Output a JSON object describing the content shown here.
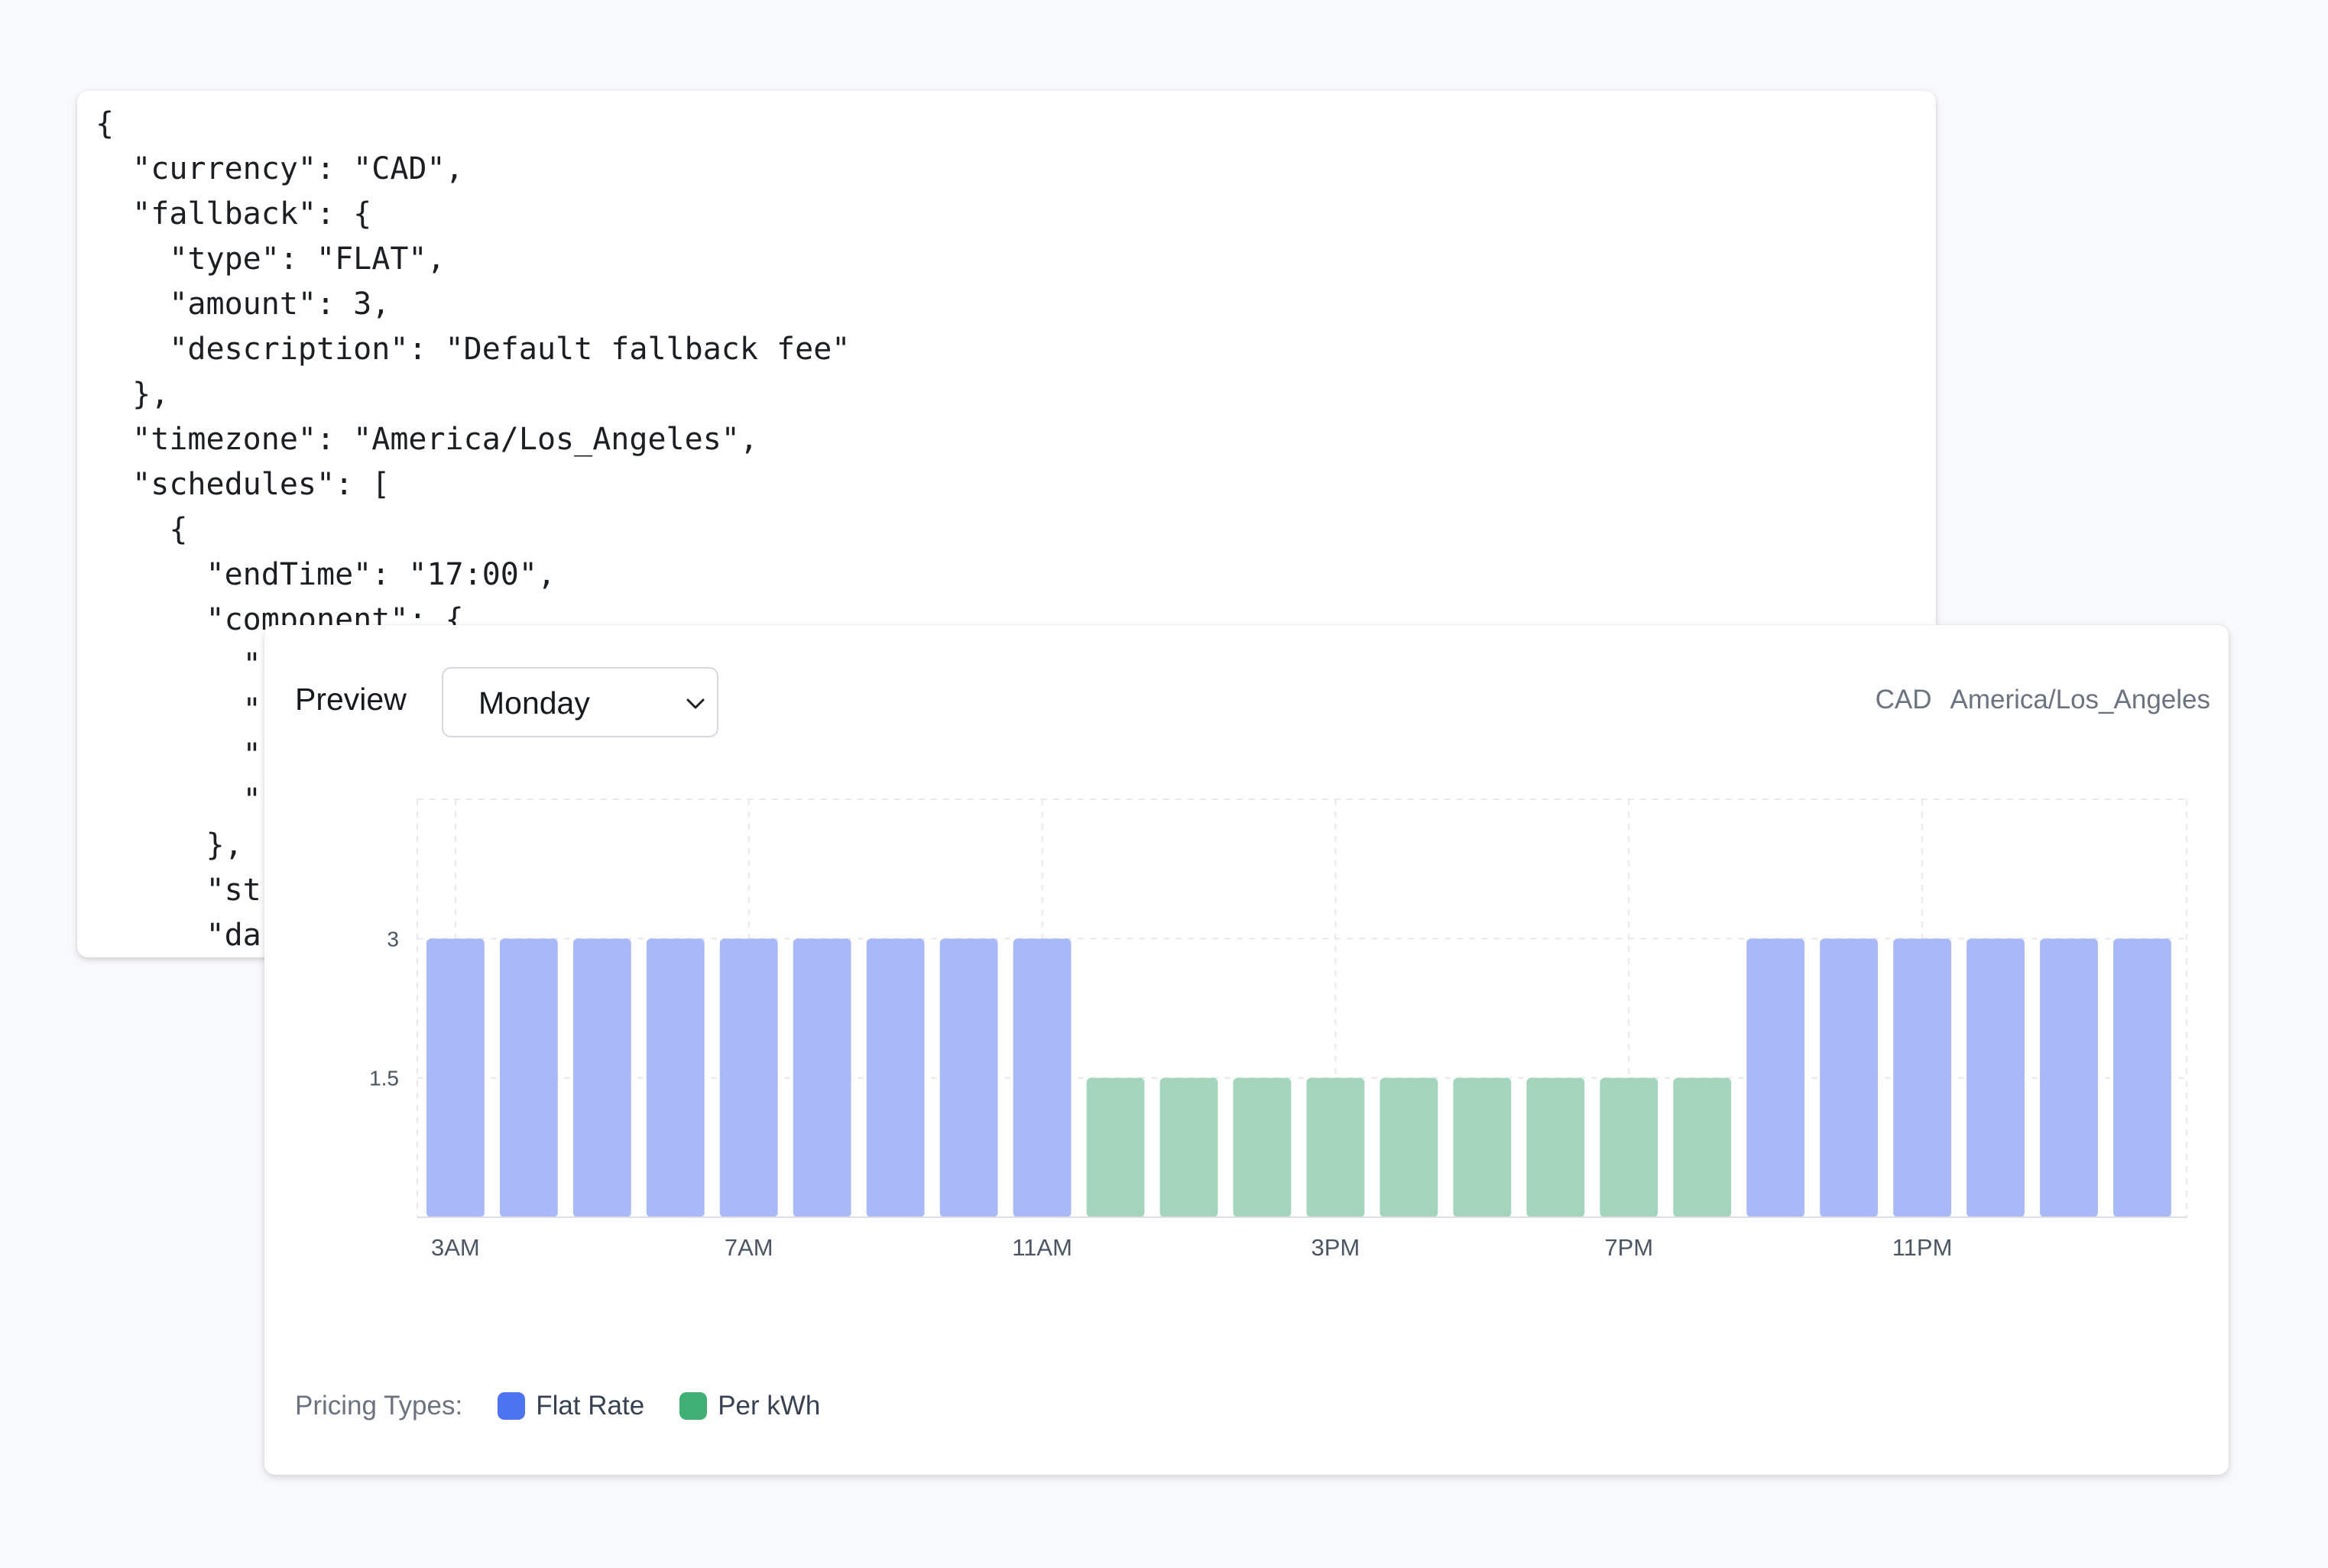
{
  "code_lines": [
    "{",
    "  \"currency\": \"CAD\",",
    "  \"fallback\": {",
    "    \"type\": \"FLAT\",",
    "    \"amount\": 3,",
    "    \"description\": \"Default fallback fee\"",
    "  },",
    "  \"timezone\": \"America/Los_Angeles\",",
    "  \"schedules\": [",
    "    {",
    "      \"endTime\": \"17:00\",",
    "      \"component\": {",
    "        \"",
    "        \"",
    "        \"",
    "        \"",
    "      },",
    "      \"st",
    "      \"da"
  ],
  "preview": {
    "title": "Preview",
    "day_selected": "Monday",
    "currency": "CAD",
    "timezone": "America/Los_Angeles"
  },
  "legend": {
    "label": "Pricing Types:",
    "items": [
      {
        "name": "Flat Rate",
        "color": "#4d74f0"
      },
      {
        "name": "Per kWh",
        "color": "#40af73"
      }
    ]
  },
  "chart_data": {
    "type": "bar",
    "x": [
      "3AM",
      "4AM",
      "5AM",
      "6AM",
      "7AM",
      "8AM",
      "9AM",
      "10AM",
      "11AM",
      "12PM",
      "1PM",
      "2PM",
      "3PM",
      "4PM",
      "5PM",
      "6PM",
      "7PM",
      "8PM",
      "9PM",
      "10PM",
      "11PM",
      "12AM",
      "1AM",
      "2AM"
    ],
    "x_tick_labels": [
      "3AM",
      "7AM",
      "11AM",
      "3PM",
      "7PM",
      "11PM"
    ],
    "values": [
      3,
      3,
      3,
      3,
      3,
      3,
      3,
      3,
      3,
      1.5,
      1.5,
      1.5,
      1.5,
      1.5,
      1.5,
      1.5,
      1.5,
      1.5,
      3,
      3,
      3,
      3,
      3,
      3
    ],
    "pricing_types": [
      "Flat Rate",
      "Flat Rate",
      "Flat Rate",
      "Flat Rate",
      "Flat Rate",
      "Flat Rate",
      "Flat Rate",
      "Flat Rate",
      "Flat Rate",
      "Per kWh",
      "Per kWh",
      "Per kWh",
      "Per kWh",
      "Per kWh",
      "Per kWh",
      "Per kWh",
      "Per kWh",
      "Per kWh",
      "Flat Rate",
      "Flat Rate",
      "Flat Rate",
      "Flat Rate",
      "Flat Rate",
      "Flat Rate"
    ],
    "colors": {
      "Flat Rate": "#a7b9f6",
      "Per kWh": "#a2d5bb"
    },
    "y_ticks": [
      1.5,
      3
    ],
    "ylim": [
      0,
      4.5
    ],
    "grid": true
  }
}
